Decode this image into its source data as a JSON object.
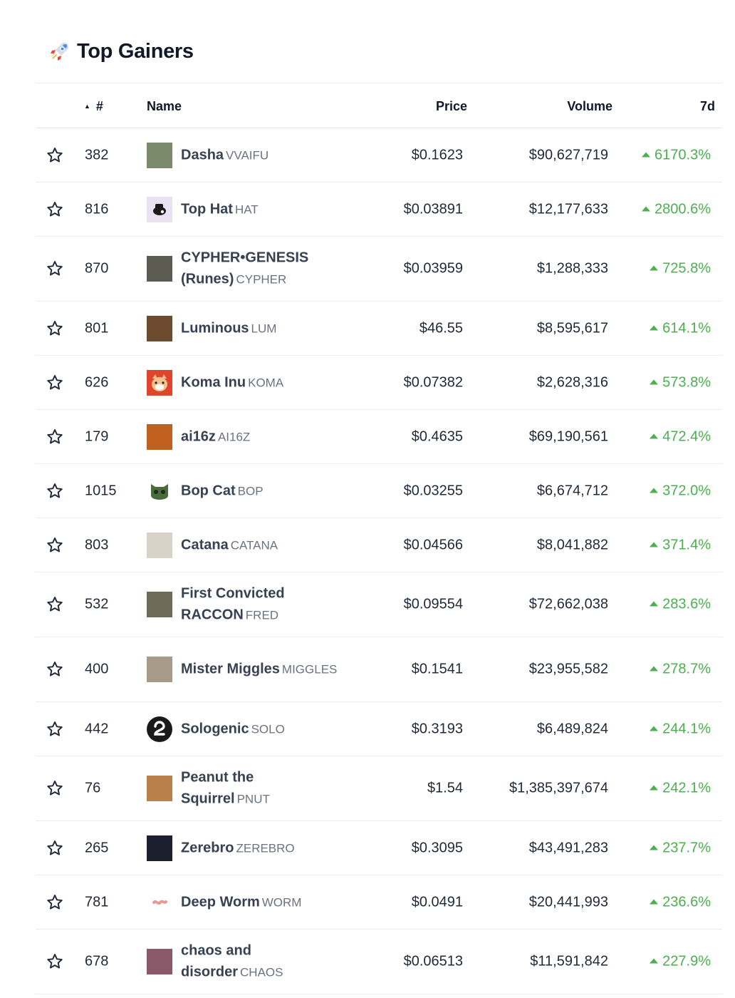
{
  "section": {
    "title": "Top Gainers",
    "icon": "rocket-icon"
  },
  "table": {
    "headers": {
      "rank": "#",
      "name": "Name",
      "price": "Price",
      "volume": "Volume",
      "change_7d": "7d"
    },
    "colors": {
      "up": "#4caf50",
      "text": "#1f2937",
      "muted": "#6b7280"
    },
    "rows": [
      {
        "rank": "382",
        "name": "Dasha",
        "symbol": "VVAIFU",
        "price": "$0.1623",
        "volume": "$90,627,719",
        "change_7d": "6170.3%",
        "logo": "dasha-logo",
        "logo_color": "#7a8a6a"
      },
      {
        "rank": "816",
        "name": "Top Hat",
        "symbol": "HAT",
        "price": "$0.03891",
        "volume": "$12,177,633",
        "change_7d": "2800.6%",
        "logo": "top-hat-logo",
        "logo_color": "#e9e2f5"
      },
      {
        "rank": "870",
        "name": "CYPHER•GENESIS (Runes)",
        "symbol": "CYPHER",
        "price": "$0.03959",
        "volume": "$1,288,333",
        "change_7d": "725.8%",
        "logo": "cypher-logo",
        "logo_color": "#5b5b52"
      },
      {
        "rank": "801",
        "name": "Luminous",
        "symbol": "LUM",
        "price": "$46.55",
        "volume": "$8,595,617",
        "change_7d": "614.1%",
        "logo": "luminous-logo",
        "logo_color": "#6b4a2e"
      },
      {
        "rank": "626",
        "name": "Koma Inu",
        "symbol": "KOMA",
        "price": "$0.07382",
        "volume": "$2,628,316",
        "change_7d": "573.8%",
        "logo": "koma-inu-logo",
        "logo_color": "#e0442e"
      },
      {
        "rank": "179",
        "name": "ai16z",
        "symbol": "AI16Z",
        "price": "$0.4635",
        "volume": "$69,190,561",
        "change_7d": "472.4%",
        "logo": "ai16z-logo",
        "logo_color": "#c0601e"
      },
      {
        "rank": "1015",
        "name": "Bop Cat",
        "symbol": "BOP",
        "price": "$0.03255",
        "volume": "$6,674,712",
        "change_7d": "372.0%",
        "logo": "bop-cat-logo",
        "logo_color": "#4a6b3e"
      },
      {
        "rank": "803",
        "name": "Catana",
        "symbol": "CATANA",
        "price": "$0.04566",
        "volume": "$8,041,882",
        "change_7d": "371.4%",
        "logo": "catana-logo",
        "logo_color": "#d8d2c8"
      },
      {
        "rank": "532",
        "name": "First Convicted RACCON",
        "symbol": "FRED",
        "price": "$0.09554",
        "volume": "$72,662,038",
        "change_7d": "283.6%",
        "logo": "fred-logo",
        "logo_color": "#6e6a58"
      },
      {
        "rank": "400",
        "name": "Mister Miggles",
        "symbol": "MIGGLES",
        "price": "$0.1541",
        "volume": "$23,955,582",
        "change_7d": "278.7%",
        "logo": "miggles-logo",
        "logo_color": "#a89a88"
      },
      {
        "rank": "442",
        "name": "Sologenic",
        "symbol": "SOLO",
        "price": "$0.3193",
        "volume": "$6,489,824",
        "change_7d": "244.1%",
        "logo": "sologenic-logo",
        "logo_color": "#1a1a1a"
      },
      {
        "rank": "76",
        "name": "Peanut the Squirrel",
        "symbol": "PNUT",
        "price": "$1.54",
        "volume": "$1,385,397,674",
        "change_7d": "242.1%",
        "logo": "pnut-logo",
        "logo_color": "#b8804a"
      },
      {
        "rank": "265",
        "name": "Zerebro",
        "symbol": "ZEREBRO",
        "price": "$0.3095",
        "volume": "$43,491,283",
        "change_7d": "237.7%",
        "logo": "zerebro-logo",
        "logo_color": "#1c1f2e"
      },
      {
        "rank": "781",
        "name": "Deep Worm",
        "symbol": "WORM",
        "price": "$0.0491",
        "volume": "$20,441,993",
        "change_7d": "236.6%",
        "logo": "deep-worm-logo",
        "logo_color": "#e79a9a"
      },
      {
        "rank": "678",
        "name": "chaos and disorder",
        "symbol": "CHAOS",
        "price": "$0.06513",
        "volume": "$11,591,842",
        "change_7d": "227.9%",
        "logo": "chaos-logo",
        "logo_color": "#8a5a6a"
      }
    ]
  }
}
